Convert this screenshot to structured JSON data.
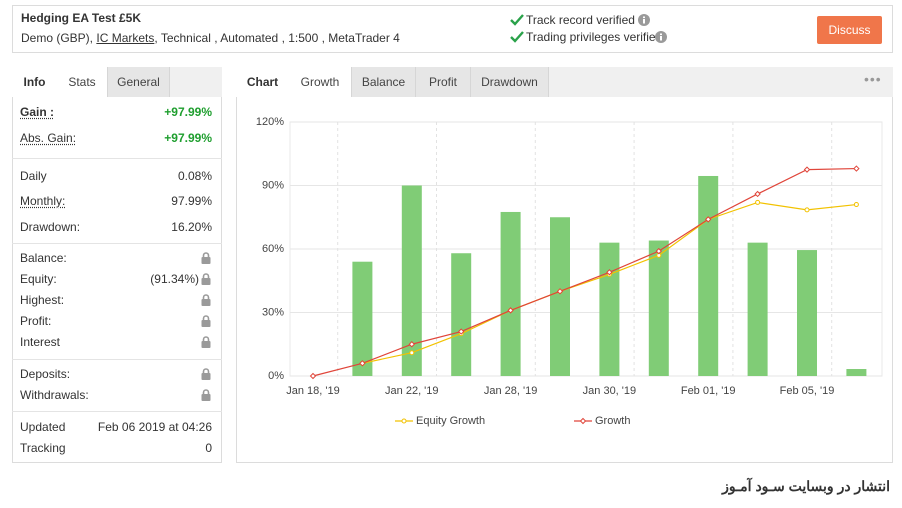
{
  "header": {
    "title": "Hedging EA Test £5K",
    "subtitle_parts": [
      "Demo (GBP),",
      "IC Markets",
      ", Technical , Automated , 1:500 , MetaTrader 4"
    ],
    "verifications": [
      "Track record verified",
      "Trading privileges verified"
    ],
    "button": "Discuss"
  },
  "stats_panel": {
    "label": "Info",
    "tabs": [
      "Stats",
      "General"
    ],
    "active_tab": 0,
    "groups": [
      [
        {
          "label": "Gain :",
          "value": "+97.99%",
          "underline": true,
          "bold": true,
          "value_color": "#1e9e2e"
        },
        {
          "label": "Abs. Gain:",
          "value": "+97.99%",
          "underline": true,
          "value_color": "#1e9e2e"
        }
      ],
      [
        {
          "label": "Daily",
          "value": "0.08%"
        },
        {
          "label": "Monthly:",
          "value": "97.99%",
          "underline": true
        },
        {
          "label": "Drawdown:",
          "value": "16.20%"
        }
      ],
      [
        {
          "label": "Balance:",
          "locked": true
        },
        {
          "label": "Equity:",
          "value": "(91.34%)",
          "locked": true
        },
        {
          "label": "Highest:",
          "locked": true
        },
        {
          "label": "Profit:",
          "locked": true
        },
        {
          "label": "Interest",
          "locked": true
        }
      ],
      [
        {
          "label": "Deposits:",
          "locked": true
        },
        {
          "label": "Withdrawals:",
          "locked": true
        }
      ],
      [
        {
          "label": "Updated",
          "value": "Feb 06 2019 at 04:26"
        },
        {
          "label": "Tracking",
          "value": "0"
        }
      ]
    ]
  },
  "chart_panel": {
    "label": "Chart",
    "tabs": [
      "Growth",
      "Balance",
      "Profit",
      "Drawdown"
    ],
    "active_tab": 0
  },
  "chart_data": {
    "type": "combo",
    "categories": [
      "Jan 18, '19",
      null,
      "Jan 22, '19",
      null,
      "Jan 28, '19",
      null,
      "Jan 30, '19",
      null,
      "Feb 01, '19",
      null,
      "Feb 05, '19",
      null
    ],
    "bars": {
      "color": "#80cc76",
      "values": [
        null,
        54,
        90,
        58,
        77.5,
        75,
        63,
        64,
        94.5,
        63,
        59.5,
        3.3
      ]
    },
    "series": [
      {
        "name": "Equity Growth",
        "color": "#f2c200",
        "values": [
          null,
          6,
          11,
          20,
          31,
          40,
          48,
          57,
          74,
          82,
          78.5,
          81
        ]
      },
      {
        "name": "Growth",
        "color": "#e0453a",
        "values": [
          0,
          6,
          15,
          21,
          31,
          40,
          49,
          59,
          74,
          86,
          97.5,
          98
        ]
      }
    ],
    "ylim": [
      0,
      120
    ],
    "yticks": [
      {
        "value": 0,
        "label": "0%"
      },
      {
        "value": 30,
        "label": "30%"
      },
      {
        "value": 60,
        "label": "60%"
      },
      {
        "value": 90,
        "label": "90%"
      },
      {
        "value": 120,
        "label": "120%"
      }
    ],
    "grid": true
  },
  "watermark": "انتشار در وبسایت سـود آمـوز"
}
